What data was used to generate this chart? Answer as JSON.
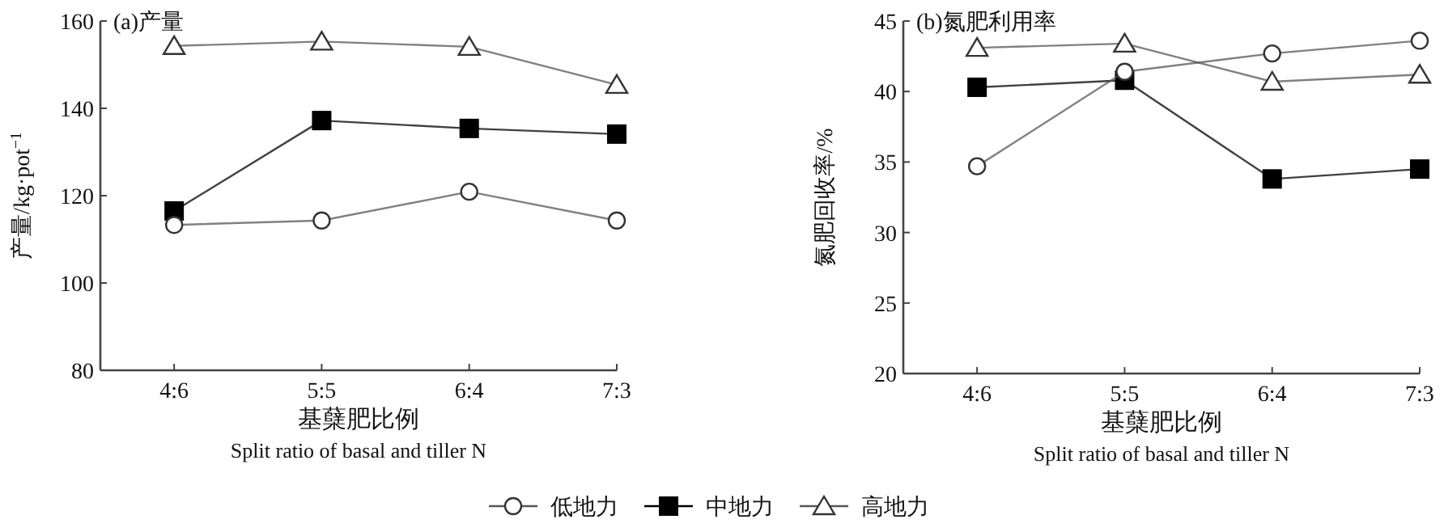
{
  "chart_data": [
    {
      "type": "line",
      "title": "(a)产量",
      "ylabel": "产量/kg·pot$^{−1}$",
      "xlabel": "基蘖肥比例\nSplit ratio of basal and tiller N",
      "categories": [
        "4:6",
        "5:5",
        "6:4",
        "7:3"
      ],
      "ylim": [
        80,
        160
      ],
      "yticks": [
        80,
        100,
        120,
        140,
        160
      ],
      "grid": false,
      "legend": "bottom",
      "line_style": "solid",
      "series": [
        {
          "name": "低地力",
          "color": "#555555",
          "marker": "circle",
          "values": [
            113.3,
            114.3,
            120.9,
            114.3
          ]
        },
        {
          "name": "中地力",
          "color": "#000000",
          "marker": "square",
          "values": [
            116.5,
            137.2,
            135.4,
            134.1
          ]
        },
        {
          "name": "高地力",
          "color": "#555555",
          "marker": "triangle",
          "values": [
            154.3,
            155.3,
            154.1,
            145.4
          ]
        }
      ]
    },
    {
      "type": "line",
      "title": "(b)氮肥利用率",
      "ylabel": "氮肥回收率/%",
      "xlabel": "基蘖肥比例\nSplit ratio of basal and tiller N",
      "categories": [
        "4:6",
        "5:5",
        "6:4",
        "7:3"
      ],
      "ylim": [
        20,
        45
      ],
      "yticks": [
        20,
        25,
        30,
        35,
        40,
        45
      ],
      "grid": false,
      "line_style": "solid",
      "series": [
        {
          "color": "#555555",
          "marker": "circle",
          "values": [
            34.7,
            41.4,
            42.7,
            43.6
          ]
        },
        {
          "color": "#000000",
          "marker": "square",
          "values": [
            40.3,
            40.8,
            33.8,
            34.5
          ]
        },
        {
          "color": "#555555",
          "marker": "triangle",
          "values": [
            43.1,
            43.4,
            40.7,
            41.2
          ]
        }
      ]
    }
  ]
}
